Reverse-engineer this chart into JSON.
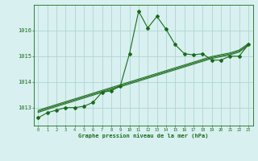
{
  "hours": [
    0,
    1,
    2,
    3,
    4,
    5,
    6,
    7,
    8,
    9,
    10,
    11,
    12,
    13,
    14,
    15,
    16,
    17,
    18,
    19,
    20,
    21,
    22,
    23
  ],
  "pressure": [
    1012.6,
    1012.8,
    1012.9,
    1013.0,
    1013.0,
    1013.05,
    1013.2,
    1013.6,
    1013.65,
    1013.85,
    1015.1,
    1016.75,
    1016.1,
    1016.55,
    1016.05,
    1015.45,
    1015.1,
    1015.05,
    1015.1,
    1014.85,
    1014.85,
    1015.0,
    1015.0,
    1015.45
  ],
  "trend": [
    1012.85,
    1012.97,
    1013.08,
    1013.19,
    1013.3,
    1013.41,
    1013.52,
    1013.63,
    1013.74,
    1013.85,
    1013.96,
    1014.07,
    1014.18,
    1014.29,
    1014.4,
    1014.51,
    1014.62,
    1014.73,
    1014.84,
    1014.95,
    1015.02,
    1015.09,
    1015.2,
    1015.45
  ],
  "line_color": "#1a6b1a",
  "bg_color": "#d8f0f0",
  "grid_color": "#b0d4d4",
  "ylabel_ticks": [
    1013,
    1014,
    1015,
    1016
  ],
  "xlabel": "Graphe pression niveau de la mer (hPa)",
  "ylim": [
    1012.3,
    1017.0
  ],
  "xlim": [
    -0.5,
    23.5
  ],
  "figsize": [
    3.2,
    2.0
  ],
  "dpi": 100
}
